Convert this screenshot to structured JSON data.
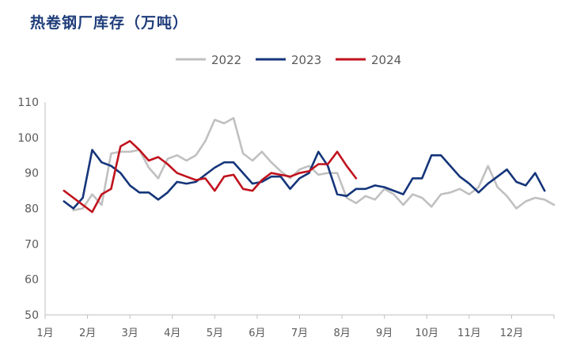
{
  "chart_data": {
    "type": "line",
    "title": "热卷钢厂库存（万吨）",
    "xlabel": "",
    "ylabel": "",
    "ylim": [
      50,
      110
    ],
    "yticks": [
      50,
      60,
      70,
      80,
      90,
      100,
      110
    ],
    "x_ticks": [
      "1月",
      "2月",
      "3月",
      "4月",
      "5月",
      "6月",
      "7月",
      "8月",
      "9月",
      "10月",
      "11月",
      "12月"
    ],
    "x_unit": "week of year (1 = first week of January)",
    "legend_position": "top-center",
    "grid": false,
    "series": [
      {
        "name": "2022",
        "color": "#c0c0c0",
        "points": [
          [
            3,
            79.5
          ],
          [
            4,
            80
          ],
          [
            5,
            84
          ],
          [
            6,
            81
          ],
          [
            7,
            95.5
          ],
          [
            8,
            96
          ],
          [
            9,
            96
          ],
          [
            10,
            96.5
          ],
          [
            11,
            91.5
          ],
          [
            12,
            88.5
          ],
          [
            13,
            94
          ],
          [
            14,
            95
          ],
          [
            15,
            93.5
          ],
          [
            16,
            95
          ],
          [
            17,
            99
          ],
          [
            18,
            105
          ],
          [
            19,
            104
          ],
          [
            20,
            105.5
          ],
          [
            21,
            95.5
          ],
          [
            22,
            93.5
          ],
          [
            23,
            96
          ],
          [
            24,
            93
          ],
          [
            25,
            90.5
          ],
          [
            26,
            88.5
          ],
          [
            27,
            91
          ],
          [
            28,
            92
          ],
          [
            29,
            89.5
          ],
          [
            30,
            90
          ],
          [
            31,
            90
          ],
          [
            32,
            83
          ],
          [
            33,
            81.5
          ],
          [
            34,
            83.5
          ],
          [
            35,
            82.5
          ],
          [
            36,
            85.5
          ],
          [
            37,
            84
          ],
          [
            38,
            81
          ],
          [
            39,
            84
          ],
          [
            40,
            83
          ],
          [
            41,
            80.5
          ],
          [
            42,
            84
          ],
          [
            43,
            84.5
          ],
          [
            44,
            85.5
          ],
          [
            45,
            84
          ],
          [
            46,
            86
          ],
          [
            47,
            92
          ],
          [
            48,
            86
          ],
          [
            49,
            83.5
          ],
          [
            50,
            80
          ],
          [
            51,
            82
          ],
          [
            52,
            83
          ],
          [
            53,
            82.5
          ],
          [
            54,
            81
          ]
        ]
      },
      {
        "name": "2023",
        "color": "#15357a",
        "points": [
          [
            2,
            82
          ],
          [
            3,
            80
          ],
          [
            4,
            83
          ],
          [
            5,
            96.5
          ],
          [
            6,
            93
          ],
          [
            7,
            92
          ],
          [
            8,
            90
          ],
          [
            9,
            86.5
          ],
          [
            10,
            84.5
          ],
          [
            11,
            84.5
          ],
          [
            12,
            82.5
          ],
          [
            13,
            84.5
          ],
          [
            14,
            87.5
          ],
          [
            15,
            87
          ],
          [
            16,
            87.5
          ],
          [
            17,
            89.5
          ],
          [
            18,
            91.5
          ],
          [
            19,
            93
          ],
          [
            20,
            93
          ],
          [
            21,
            90
          ],
          [
            22,
            87
          ],
          [
            23,
            87.5
          ],
          [
            24,
            89
          ],
          [
            25,
            89
          ],
          [
            26,
            85.5
          ],
          [
            27,
            88.5
          ],
          [
            28,
            90
          ],
          [
            29,
            96
          ],
          [
            30,
            92
          ],
          [
            31,
            84
          ],
          [
            32,
            83.5
          ],
          [
            33,
            85.5
          ],
          [
            34,
            85.5
          ],
          [
            35,
            86.5
          ],
          [
            36,
            86
          ],
          [
            37,
            85
          ],
          [
            38,
            84
          ],
          [
            39,
            88.5
          ],
          [
            40,
            88.5
          ],
          [
            41,
            95
          ],
          [
            42,
            95
          ],
          [
            43,
            92
          ],
          [
            44,
            89
          ],
          [
            45,
            87
          ],
          [
            46,
            84.5
          ],
          [
            47,
            87
          ],
          [
            48,
            89
          ],
          [
            49,
            91
          ],
          [
            50,
            87.5
          ],
          [
            51,
            86.5
          ],
          [
            52,
            90
          ],
          [
            53,
            85
          ]
        ]
      },
      {
        "name": "2024",
        "color": "#c0121d",
        "points": [
          [
            2,
            85
          ],
          [
            3,
            83
          ],
          [
            4,
            81
          ],
          [
            5,
            79
          ],
          [
            6,
            84
          ],
          [
            7,
            85.5
          ],
          [
            8,
            97.5
          ],
          [
            9,
            99
          ],
          [
            10,
            96.5
          ],
          [
            11,
            93.5
          ],
          [
            12,
            94.5
          ],
          [
            13,
            92.5
          ],
          [
            14,
            90
          ],
          [
            15,
            89
          ],
          [
            16,
            88
          ],
          [
            17,
            88.5
          ],
          [
            18,
            85
          ],
          [
            19,
            89
          ],
          [
            20,
            89.5
          ],
          [
            21,
            85.5
          ],
          [
            22,
            85
          ],
          [
            23,
            88
          ],
          [
            24,
            90
          ],
          [
            25,
            89.5
          ],
          [
            26,
            89
          ],
          [
            27,
            90
          ],
          [
            28,
            90.5
          ],
          [
            29,
            92.5
          ],
          [
            30,
            92.5
          ],
          [
            31,
            96
          ],
          [
            32,
            92
          ],
          [
            33,
            88.5
          ]
        ]
      }
    ]
  }
}
